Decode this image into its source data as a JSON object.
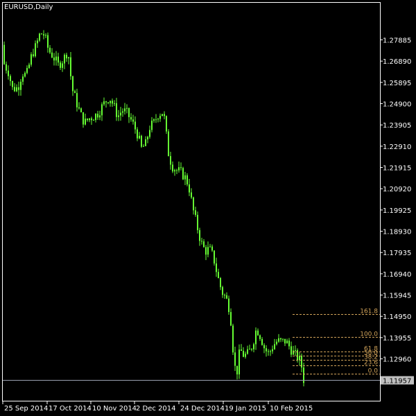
{
  "symbol_label": "EURUSD,Daily",
  "chart_data": {
    "type": "candlestick",
    "symbol": "EURUSD",
    "timeframe": "Daily",
    "current_price": "1.11957",
    "y_ticks": [
      "1.27885",
      "1.26890",
      "1.25895",
      "1.24900",
      "1.23905",
      "1.22910",
      "1.21915",
      "1.20920",
      "1.19925",
      "1.18930",
      "1.17935",
      "1.16940",
      "1.15945",
      "1.14950",
      "1.13955",
      "1.12960"
    ],
    "x_ticks": [
      "25 Sep 2014",
      "17 Oct 2014",
      "10 Nov 2014",
      "2 Dec 2014",
      "24 Dec 2014",
      "19 Jan 2015",
      "10 Feb 2015"
    ],
    "ylim": [
      1.11,
      1.2962
    ],
    "fibonacci": {
      "levels": [
        {
          "label": "161.8",
          "price": 1.1504
        },
        {
          "label": "100.0",
          "price": 1.1398
        },
        {
          "label": "61.8",
          "price": 1.1331
        },
        {
          "label": "50.0",
          "price": 1.131
        },
        {
          "label": "38.2",
          "price": 1.1291
        },
        {
          "label": "23.6",
          "price": 1.1265
        },
        {
          "label": "0.0",
          "price": 1.1226
        }
      ]
    },
    "colors": {
      "background": "#000000",
      "candle": "#66ff33",
      "axis": "#ffffff",
      "fibo": "#d2a45a",
      "price_tag": "#c0c0c0",
      "price_line": "#9aa0b0"
    }
  }
}
